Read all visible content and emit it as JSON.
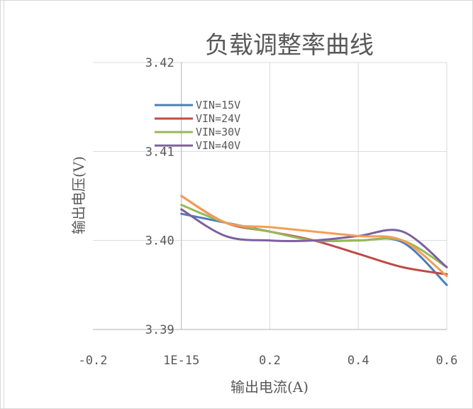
{
  "chart_data": {
    "type": "line",
    "title": "负载调整率曲线",
    "xlabel": "输出电流(A)",
    "ylabel": "输出电压(V)",
    "xlim": [
      -0.2,
      0.6
    ],
    "ylim": [
      3.39,
      3.42
    ],
    "x_ticks": [
      -0.2,
      0,
      0.2,
      0.4,
      0.6
    ],
    "x_tick_labels": [
      "-0.2",
      "1E-15",
      "0.2",
      "0.4",
      "0.6"
    ],
    "y_ticks": [
      3.39,
      3.4,
      3.41,
      3.42
    ],
    "y_tick_labels": [
      "3.39",
      "3.40",
      "3.41",
      "3.42"
    ],
    "grid": true,
    "legend_position": "top-left",
    "series": [
      {
        "name": "VIN=15V",
        "color": "#4a7ebb",
        "x": [
          0,
          0.1,
          0.2,
          0.3,
          0.4,
          0.5,
          0.6
        ],
        "y": [
          3.403,
          3.402,
          3.401,
          3.4,
          3.4,
          3.3998,
          3.395
        ]
      },
      {
        "name": "VIN=24V",
        "color": "#be4b48",
        "x": [
          0,
          0.1,
          0.2,
          0.3,
          0.4,
          0.5,
          0.6
        ],
        "y": [
          3.405,
          3.402,
          3.401,
          3.4,
          3.3985,
          3.397,
          3.3962
        ]
      },
      {
        "name": "VIN=30V",
        "color": "#98b954",
        "x": [
          0,
          0.1,
          0.2,
          0.3,
          0.4,
          0.5,
          0.6
        ],
        "y": [
          3.404,
          3.402,
          3.401,
          3.4,
          3.4,
          3.4,
          3.397
        ]
      },
      {
        "name": "VIN=40V",
        "color": "#7d60a0",
        "x": [
          0,
          0.1,
          0.2,
          0.3,
          0.4,
          0.5,
          0.6
        ],
        "y": [
          3.4035,
          3.4005,
          3.4,
          3.4,
          3.4005,
          3.401,
          3.397
        ]
      },
      {
        "name": "",
        "color": "#f59d56",
        "x": [
          0,
          0.1,
          0.2,
          0.3,
          0.4,
          0.5,
          0.6
        ],
        "y": [
          3.405,
          3.402,
          3.4015,
          3.401,
          3.4005,
          3.4,
          3.396
        ]
      }
    ]
  }
}
